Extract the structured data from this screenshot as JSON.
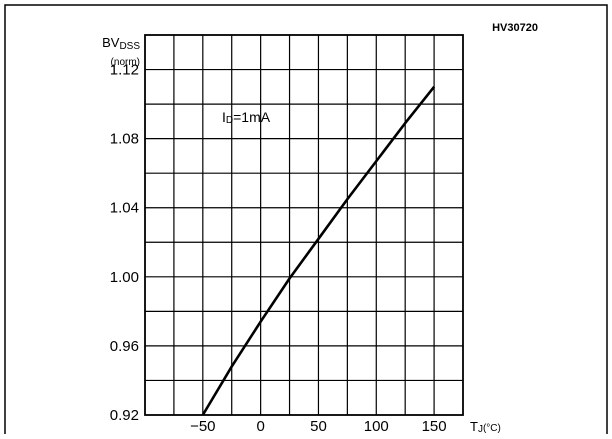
{
  "chart_data": {
    "type": "line",
    "reference": "HV30720",
    "ylabel": {
      "main": "BV",
      "sub": "DSS",
      "unit": "(norm)"
    },
    "xlabel": {
      "main": "T",
      "sub": "J",
      "unit": "(°C)"
    },
    "annotation": {
      "main": "I",
      "sub": "D",
      "rest": "=1mA"
    },
    "xlim": [
      -100,
      175
    ],
    "ylim": [
      0.92,
      1.14
    ],
    "grid": true,
    "x_ticks": [
      -50,
      0,
      50,
      100,
      150
    ],
    "x_tick_labels": [
      "−50",
      "0",
      "50",
      "100",
      "150"
    ],
    "y_ticks": [
      0.92,
      0.96,
      1.0,
      1.04,
      1.08,
      1.12
    ],
    "y_tick_labels": [
      "0.92",
      "0.96",
      "1.00",
      "1.04",
      "1.08",
      "1.12"
    ],
    "series": [
      {
        "color": "#000000",
        "x": [
          -50,
          -25,
          0,
          25,
          50,
          75,
          100,
          125,
          150
        ],
        "y": [
          0.92,
          0.948,
          0.974,
          0.999,
          1.022,
          1.045,
          1.067,
          1.089,
          1.11
        ]
      }
    ]
  }
}
